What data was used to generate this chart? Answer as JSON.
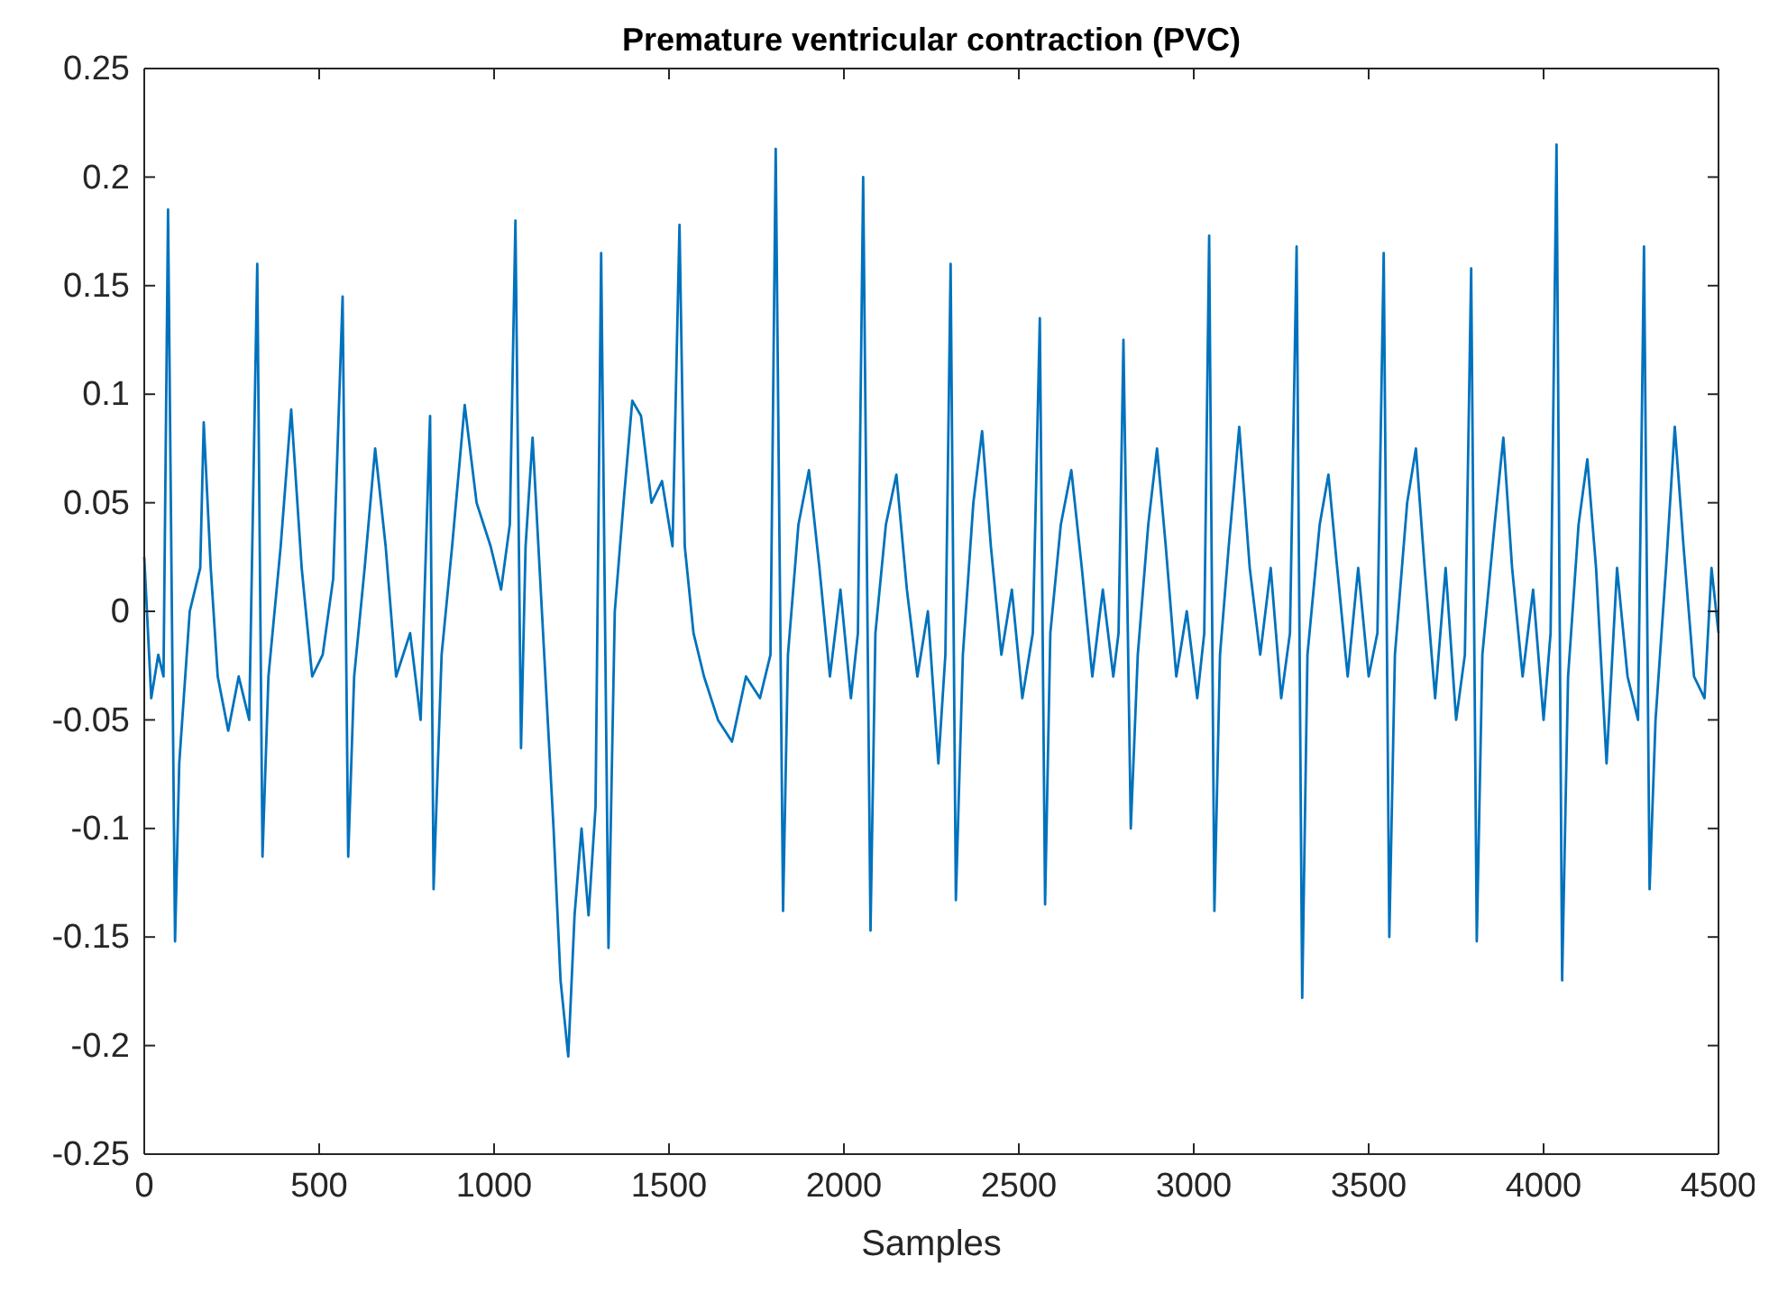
{
  "chart_data": {
    "type": "line",
    "title": "Premature ventricular contraction (PVC)",
    "xlabel": "Samples",
    "xlim": [
      0,
      4500
    ],
    "xticks": [
      0,
      500,
      1000,
      1500,
      2000,
      2500,
      3000,
      3500,
      4000,
      4500
    ],
    "ylim": [
      -0.25,
      0.25
    ],
    "yticks": [
      -0.25,
      -0.2,
      -0.15,
      -0.1,
      -0.05,
      0,
      0.05,
      0.1,
      0.15,
      0.2,
      0.25
    ],
    "grid": false,
    "marker": "none",
    "line_style": "solid",
    "x": [
      0,
      20,
      40,
      55,
      68,
      88,
      100,
      130,
      160,
      170,
      190,
      210,
      240,
      270,
      300,
      323,
      338,
      355,
      390,
      420,
      450,
      480,
      510,
      540,
      567,
      583,
      600,
      630,
      660,
      690,
      720,
      760,
      790,
      817,
      827,
      850,
      880,
      916,
      950,
      990,
      1020,
      1045,
      1061,
      1077,
      1090,
      1110,
      1130,
      1150,
      1170,
      1190,
      1212,
      1230,
      1250,
      1270,
      1290,
      1306,
      1327,
      1345,
      1370,
      1395,
      1420,
      1450,
      1480,
      1510,
      1530,
      1545,
      1570,
      1600,
      1640,
      1680,
      1720,
      1760,
      1790,
      1805,
      1826,
      1840,
      1870,
      1900,
      1930,
      1960,
      1990,
      2020,
      2040,
      2055,
      2076,
      2090,
      2120,
      2150,
      2180,
      2210,
      2240,
      2270,
      2290,
      2305,
      2320,
      2340,
      2370,
      2395,
      2420,
      2450,
      2480,
      2510,
      2540,
      2560,
      2575,
      2590,
      2620,
      2650,
      2680,
      2710,
      2740,
      2770,
      2785,
      2799,
      2820,
      2840,
      2870,
      2895,
      2920,
      2950,
      2980,
      3010,
      3030,
      3044,
      3059,
      3075,
      3100,
      3130,
      3160,
      3190,
      3220,
      3250,
      3275,
      3294,
      3310,
      3325,
      3360,
      3385,
      3410,
      3440,
      3470,
      3500,
      3525,
      3543,
      3559,
      3575,
      3610,
      3635,
      3660,
      3690,
      3720,
      3750,
      3775,
      3793,
      3809,
      3825,
      3860,
      3885,
      3910,
      3940,
      3970,
      4000,
      4020,
      4037,
      4053,
      4070,
      4100,
      4125,
      4150,
      4180,
      4210,
      4240,
      4270,
      4287,
      4303,
      4320,
      4350,
      4375,
      4400,
      4430,
      4460,
      4480,
      4500
    ],
    "series": [
      {
        "color": "#0072bd",
        "values": [
          0.025,
          -0.04,
          -0.02,
          -0.03,
          0.185,
          -0.152,
          -0.07,
          0.0,
          0.02,
          0.087,
          0.02,
          -0.03,
          -0.055,
          -0.03,
          -0.05,
          0.16,
          -0.113,
          -0.03,
          0.03,
          0.093,
          0.02,
          -0.03,
          -0.02,
          0.015,
          0.145,
          -0.113,
          -0.03,
          0.02,
          0.075,
          0.03,
          -0.03,
          -0.01,
          -0.05,
          0.09,
          -0.128,
          -0.02,
          0.03,
          0.095,
          0.05,
          0.03,
          0.01,
          0.04,
          0.18,
          -0.063,
          0.03,
          0.08,
          0.02,
          -0.04,
          -0.1,
          -0.17,
          -0.205,
          -0.14,
          -0.1,
          -0.14,
          -0.09,
          0.165,
          -0.155,
          0.0,
          0.05,
          0.097,
          0.09,
          0.05,
          0.06,
          0.03,
          0.178,
          0.03,
          -0.01,
          -0.03,
          -0.05,
          -0.06,
          -0.03,
          -0.04,
          -0.02,
          0.213,
          -0.138,
          -0.02,
          0.04,
          0.065,
          0.02,
          -0.03,
          0.01,
          -0.04,
          -0.01,
          0.2,
          -0.147,
          -0.01,
          0.04,
          0.063,
          0.01,
          -0.03,
          0.0,
          -0.07,
          -0.02,
          0.16,
          -0.133,
          -0.02,
          0.05,
          0.083,
          0.03,
          -0.02,
          0.01,
          -0.04,
          -0.01,
          0.135,
          -0.135,
          -0.01,
          0.04,
          0.065,
          0.02,
          -0.03,
          0.01,
          -0.03,
          -0.01,
          0.125,
          -0.1,
          -0.02,
          0.04,
          0.075,
          0.03,
          -0.03,
          0.0,
          -0.04,
          -0.01,
          0.173,
          -0.138,
          -0.02,
          0.03,
          0.085,
          0.02,
          -0.02,
          0.02,
          -0.04,
          -0.01,
          0.168,
          -0.178,
          -0.02,
          0.04,
          0.063,
          0.02,
          -0.03,
          0.02,
          -0.03,
          -0.01,
          0.165,
          -0.15,
          -0.02,
          0.05,
          0.075,
          0.02,
          -0.04,
          0.02,
          -0.05,
          -0.02,
          0.158,
          -0.152,
          -0.02,
          0.04,
          0.08,
          0.02,
          -0.03,
          0.01,
          -0.05,
          -0.01,
          0.215,
          -0.17,
          -0.03,
          0.04,
          0.07,
          0.02,
          -0.07,
          0.02,
          -0.03,
          -0.05,
          0.168,
          -0.128,
          -0.05,
          0.02,
          0.085,
          0.03,
          -0.03,
          -0.04,
          0.02,
          -0.01
        ]
      }
    ]
  }
}
